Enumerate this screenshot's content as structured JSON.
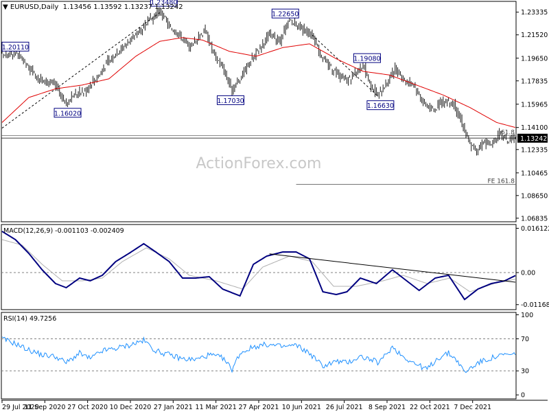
{
  "header": {
    "symbol": "EURUSD,Daily",
    "ohlc": "1.13456 1.13592 1.13237 1.13242"
  },
  "watermark": "ActionForex.com",
  "colors": {
    "price": "#000000",
    "sma": "#e00000",
    "macd": "#000080",
    "signal": "#b0b0b0",
    "rsi": "#1e90ff",
    "price_tag_bg": "#000000",
    "price_tag_text": "#ffffff",
    "label_border": "#000080"
  },
  "chart_data": [
    {
      "type": "line",
      "title": "EURUSD,Daily 1.13456 1.13592 1.13237 1.13242",
      "x_dates": [
        "29 Jul 2020",
        "11 Sep 2020",
        "27 Oct 2020",
        "10 Dec 2020",
        "27 Jan 2021",
        "11 Mar 2021",
        "27 Apr 2021",
        "10 Jun 2021",
        "26 Jul 2021",
        "8 Sep 2021",
        "22 Oct 2021",
        "7 Dec 2021"
      ],
      "y_ticks": [
        "1.23335",
        "1.21520",
        "1.19650",
        "1.17835",
        "1.15965",
        "1.14100",
        "1.12335",
        "1.10465",
        "1.08650",
        "1.06835"
      ],
      "ylim": [
        1.0655,
        1.242
      ],
      "current_price": "1.13242",
      "series": [
        {
          "name": "",
          "key_points": [
            [
              0,
              1.198
            ],
            [
              10,
              1.201
            ],
            [
              20,
              1.188
            ],
            [
              30,
              1.178
            ],
            [
              40,
              1.175
            ],
            [
              47,
              1.1602
            ],
            [
              55,
              1.168
            ],
            [
              62,
              1.17
            ],
            [
              70,
              1.18
            ],
            [
              80,
              1.195
            ],
            [
              90,
              1.205
            ],
            [
              100,
              1.215
            ],
            [
              110,
              1.226
            ],
            [
              118,
              1.2348
            ],
            [
              125,
              1.222
            ],
            [
              133,
              1.215
            ],
            [
              140,
              1.205
            ],
            [
              146,
              1.212
            ],
            [
              152,
              1.22
            ],
            [
              158,
              1.2
            ],
            [
              165,
              1.19
            ],
            [
              172,
              1.1703
            ],
            [
              178,
              1.18
            ],
            [
              185,
              1.193
            ],
            [
              193,
              1.205
            ],
            [
              200,
              1.215
            ],
            [
              208,
              1.21
            ],
            [
              215,
              1.2265
            ],
            [
              222,
              1.222
            ],
            [
              232,
              1.215
            ],
            [
              240,
              1.196
            ],
            [
              250,
              1.185
            ],
            [
              258,
              1.178
            ],
            [
              265,
              1.185
            ],
            [
              270,
              1.1908
            ],
            [
              276,
              1.175
            ],
            [
              281,
              1.1663
            ],
            [
              287,
              1.176
            ],
            [
              294,
              1.188
            ],
            [
              300,
              1.18
            ],
            [
              308,
              1.175
            ],
            [
              316,
              1.16
            ],
            [
              323,
              1.155
            ],
            [
              330,
              1.162
            ],
            [
              338,
              1.16
            ],
            [
              345,
              1.142
            ],
            [
              350,
              1.127
            ],
            [
              355,
              1.122
            ],
            [
              360,
              1.13
            ],
            [
              366,
              1.127
            ],
            [
              372,
              1.136
            ],
            [
              378,
              1.13
            ],
            [
              384,
              1.13242
            ]
          ]
        },
        {
          "name": "",
          "key_points": [
            [
              0,
              1.145
            ],
            [
              20,
              1.165
            ],
            [
              40,
              1.172
            ],
            [
              60,
              1.175
            ],
            [
              80,
              1.18
            ],
            [
              100,
              1.198
            ],
            [
              118,
              1.21
            ],
            [
              135,
              1.213
            ],
            [
              150,
              1.211
            ],
            [
              170,
              1.202
            ],
            [
              190,
              1.198
            ],
            [
              210,
              1.205
            ],
            [
              230,
              1.208
            ],
            [
              250,
              1.196
            ],
            [
              270,
              1.186
            ],
            [
              290,
              1.183
            ],
            [
              310,
              1.175
            ],
            [
              330,
              1.167
            ],
            [
              350,
              1.157
            ],
            [
              370,
              1.145
            ],
            [
              384,
              1.141
            ]
          ]
        }
      ],
      "annotations": [
        {
          "text": "1.20110",
          "x": 10,
          "y": 1.2011
        },
        {
          "text": "1.16020",
          "x": 47,
          "y": 1.1602
        },
        {
          "text": "1.23480",
          "x": 118,
          "y": 1.2348
        },
        {
          "text": "1.17030",
          "x": 172,
          "y": 1.1703
        },
        {
          "text": "1.22650",
          "x": 215,
          "y": 1.2265
        },
        {
          "text": "1.19080",
          "x": 270,
          "y": 1.1908
        },
        {
          "text": "1.16630",
          "x": 281,
          "y": 1.1663
        }
      ],
      "horizontal_lines": [
        {
          "value": 1.1345,
          "label": "61.8"
        },
        {
          "value": 1.1325,
          "label": ""
        },
        {
          "value": 1.0955,
          "label": "FE 161.8",
          "from_x": 220
        }
      ],
      "trendline": {
        "from": [
          0,
          1.1405
        ],
        "to": [
          118,
          1.233
        ]
      },
      "dashed_trendline": {
        "from": [
          232,
          1.215
        ],
        "to": [
          281,
          1.1663
        ]
      },
      "grid": false
    },
    {
      "type": "line",
      "title": "MACD(12,26,9) -0.001103 -0.002409",
      "y_ticks": [
        "0.016122",
        "0.00",
        "-0.011681"
      ],
      "ylim": [
        -0.0135,
        0.0175
      ],
      "zero_line": true,
      "macd_key_points": [
        [
          0,
          0.015
        ],
        [
          10,
          0.012
        ],
        [
          20,
          0.007
        ],
        [
          30,
          0.001
        ],
        [
          40,
          -0.004
        ],
        [
          48,
          -0.0055
        ],
        [
          58,
          -0.002
        ],
        [
          66,
          -0.003
        ],
        [
          75,
          -0.001
        ],
        [
          85,
          0.004
        ],
        [
          95,
          0.007
        ],
        [
          106,
          0.0105
        ],
        [
          115,
          0.0075
        ],
        [
          125,
          0.004
        ],
        [
          135,
          -0.002
        ],
        [
          145,
          -0.002
        ],
        [
          155,
          -0.0015
        ],
        [
          165,
          -0.006
        ],
        [
          178,
          -0.0085
        ],
        [
          188,
          0.003
        ],
        [
          198,
          0.006
        ],
        [
          210,
          0.0075
        ],
        [
          220,
          0.0075
        ],
        [
          230,
          0.005
        ],
        [
          240,
          -0.007
        ],
        [
          250,
          -0.008
        ],
        [
          258,
          -0.007
        ],
        [
          268,
          -0.002
        ],
        [
          280,
          -0.004
        ],
        [
          292,
          0.001
        ],
        [
          300,
          -0.002
        ],
        [
          312,
          -0.0065
        ],
        [
          324,
          -0.002
        ],
        [
          334,
          -0.001
        ],
        [
          346,
          -0.0098
        ],
        [
          356,
          -0.006
        ],
        [
          366,
          -0.004
        ],
        [
          376,
          -0.003
        ],
        [
          384,
          -0.0011
        ]
      ],
      "signal_key_points": [
        [
          0,
          0.012
        ],
        [
          15,
          0.01
        ],
        [
          30,
          0.003
        ],
        [
          45,
          -0.003
        ],
        [
          60,
          -0.003
        ],
        [
          75,
          -0.002
        ],
        [
          90,
          0.004
        ],
        [
          108,
          0.009
        ],
        [
          125,
          0.005
        ],
        [
          140,
          -0.001
        ],
        [
          160,
          -0.003
        ],
        [
          180,
          -0.006
        ],
        [
          195,
          0.002
        ],
        [
          215,
          0.006
        ],
        [
          232,
          0.004
        ],
        [
          248,
          -0.005
        ],
        [
          265,
          -0.005
        ],
        [
          285,
          -0.003
        ],
        [
          300,
          -0.001
        ],
        [
          318,
          -0.004
        ],
        [
          335,
          -0.002
        ],
        [
          350,
          -0.007
        ],
        [
          368,
          -0.004
        ],
        [
          384,
          -0.0024
        ]
      ],
      "trendline": {
        "from": [
          200,
          0.0068
        ],
        "to": [
          384,
          -0.0035
        ]
      }
    },
    {
      "type": "line",
      "title": "RSI(14) 49.7256",
      "y_ticks": [
        "100",
        "70",
        "30",
        "0"
      ],
      "ylim": [
        -5,
        103
      ],
      "levels": [
        70,
        30
      ],
      "key_points": [
        [
          0,
          70
        ],
        [
          10,
          64
        ],
        [
          20,
          56
        ],
        [
          30,
          50
        ],
        [
          40,
          48
        ],
        [
          48,
          40
        ],
        [
          58,
          52
        ],
        [
          66,
          45
        ],
        [
          75,
          55
        ],
        [
          85,
          58
        ],
        [
          95,
          62
        ],
        [
          106,
          68
        ],
        [
          115,
          55
        ],
        [
          125,
          50
        ],
        [
          135,
          45
        ],
        [
          145,
          44
        ],
        [
          155,
          50
        ],
        [
          165,
          46
        ],
        [
          172,
          32
        ],
        [
          178,
          52
        ],
        [
          188,
          60
        ],
        [
          198,
          63
        ],
        [
          210,
          60
        ],
        [
          220,
          62
        ],
        [
          230,
          52
        ],
        [
          240,
          36
        ],
        [
          250,
          42
        ],
        [
          258,
          40
        ],
        [
          268,
          48
        ],
        [
          276,
          44
        ],
        [
          282,
          40
        ],
        [
          292,
          60
        ],
        [
          300,
          48
        ],
        [
          310,
          38
        ],
        [
          318,
          32
        ],
        [
          326,
          46
        ],
        [
          334,
          52
        ],
        [
          340,
          44
        ],
        [
          346,
          28
        ],
        [
          356,
          40
        ],
        [
          366,
          46
        ],
        [
          376,
          50
        ],
        [
          384,
          50
        ]
      ]
    }
  ]
}
